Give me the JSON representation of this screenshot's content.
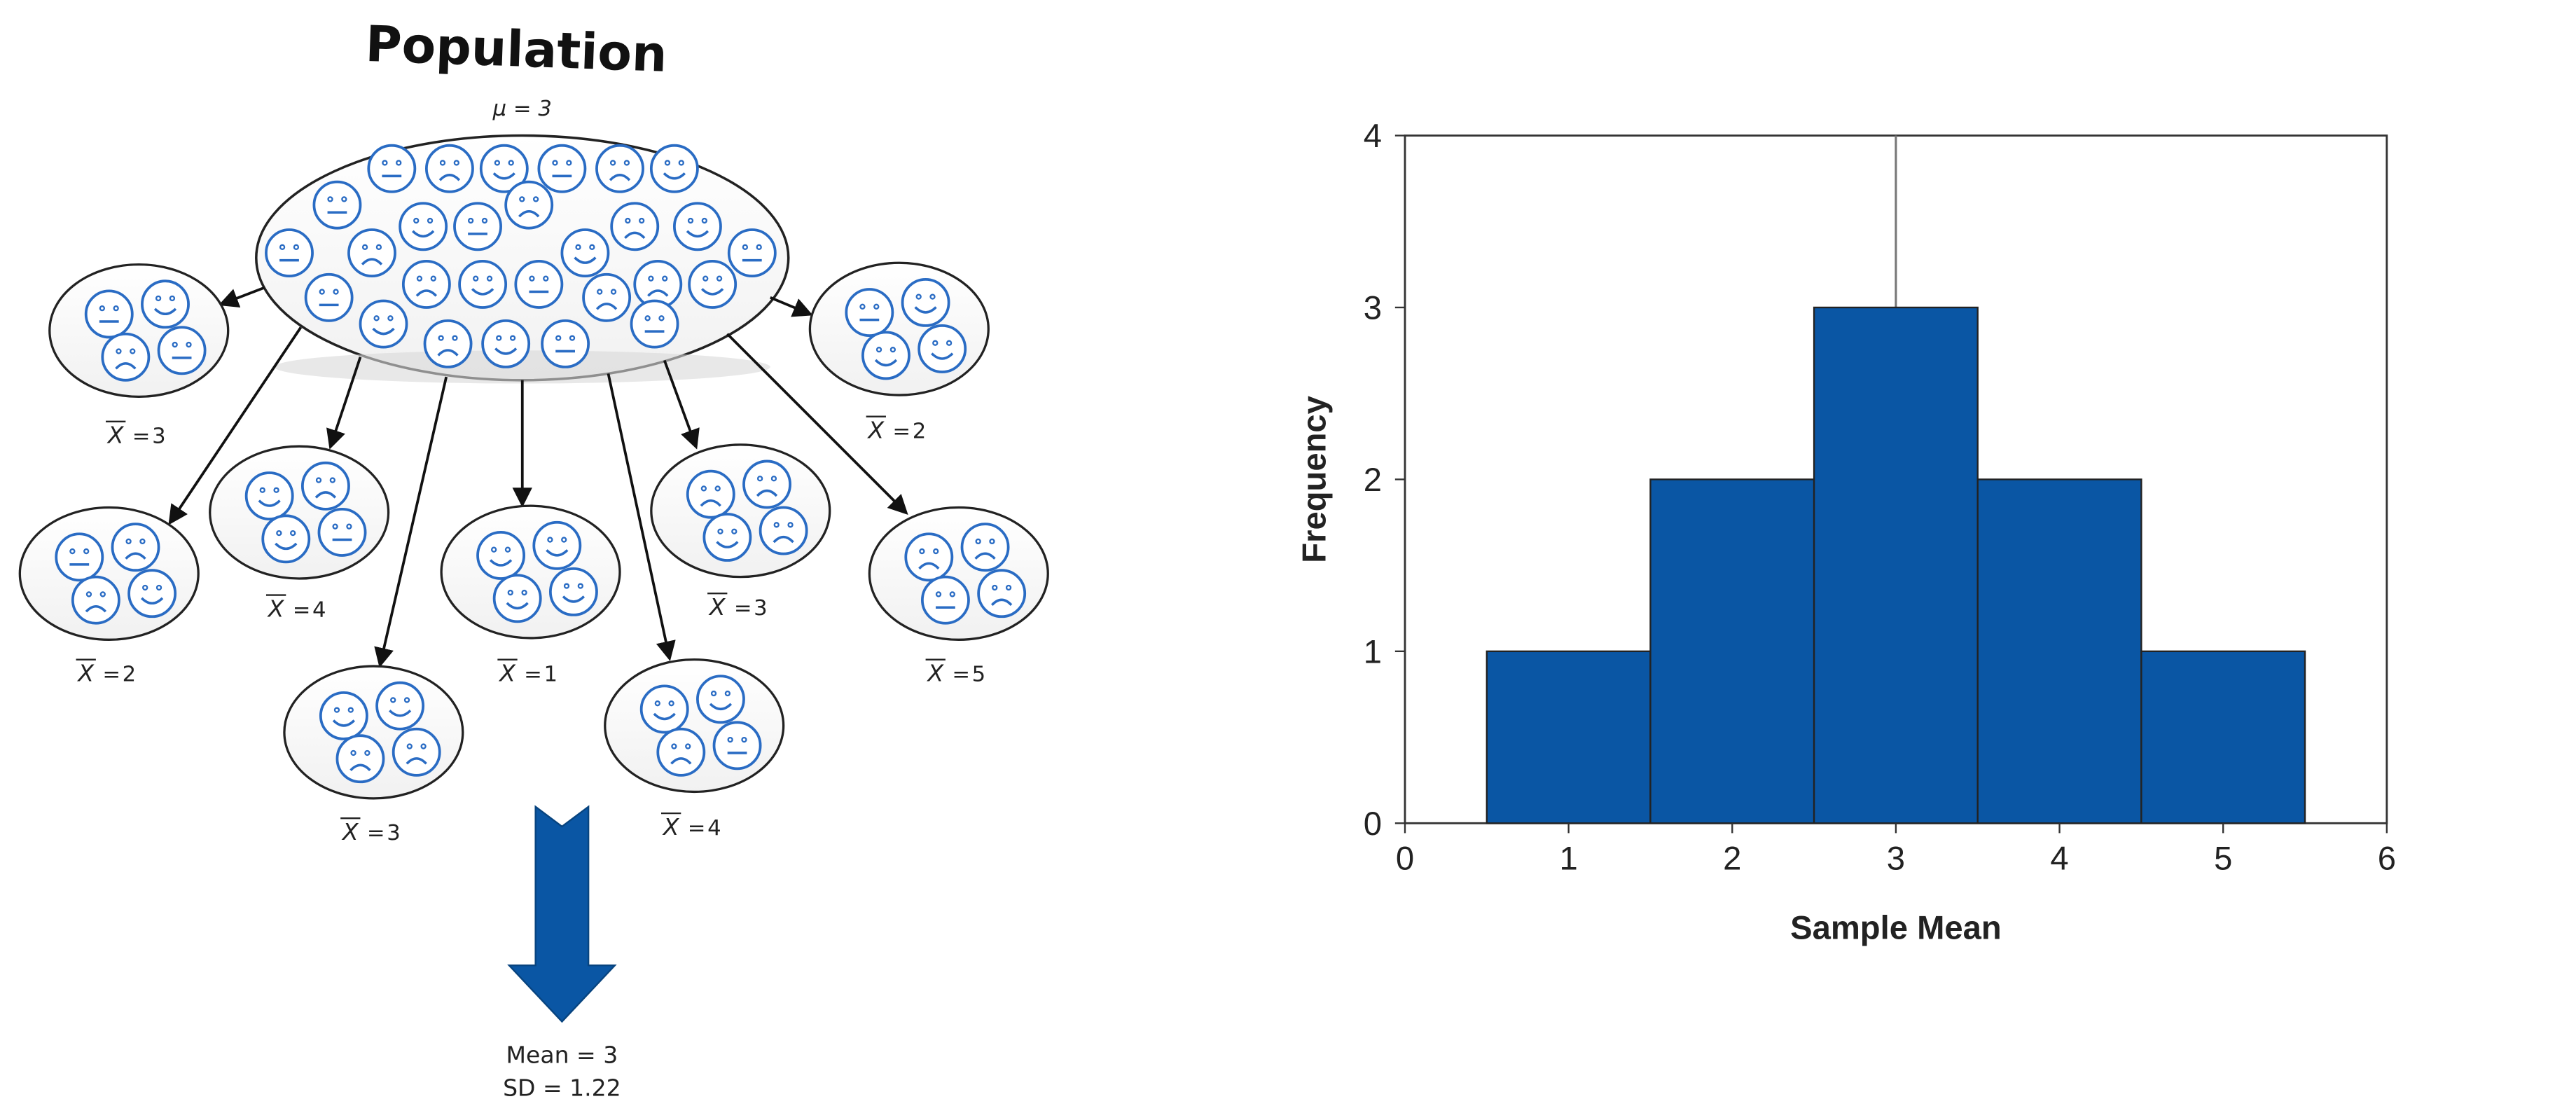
{
  "diagram": {
    "title": "Population",
    "population_param": "μ = 3",
    "samples": [
      {
        "id": "top-left",
        "mean": "3",
        "faces": [
          "neutral",
          "happy",
          "sad",
          "neutral"
        ]
      },
      {
        "id": "top-right",
        "mean": "2",
        "faces": [
          "neutral",
          "happy",
          "happy",
          "happy"
        ]
      },
      {
        "id": "mid-left",
        "mean": "2",
        "faces": [
          "neutral",
          "sad",
          "sad",
          "happy"
        ]
      },
      {
        "id": "mid-left-inner",
        "mean": "4",
        "faces": [
          "happy",
          "sad",
          "happy",
          "neutral"
        ]
      },
      {
        "id": "center",
        "mean": "1",
        "faces": [
          "happy",
          "happy",
          "happy",
          "happy"
        ]
      },
      {
        "id": "mid-right-inner",
        "mean": "3",
        "faces": [
          "sad",
          "sad",
          "happy",
          "sad"
        ]
      },
      {
        "id": "mid-right",
        "mean": "5",
        "faces": [
          "sad",
          "sad",
          "neutral",
          "sad"
        ]
      },
      {
        "id": "bottom-left",
        "mean": "3",
        "faces": [
          "happy",
          "happy",
          "sad",
          "sad"
        ]
      },
      {
        "id": "bottom-right",
        "mean": "4",
        "faces": [
          "happy",
          "happy",
          "sad",
          "neutral"
        ]
      }
    ],
    "summary": {
      "mean": "Mean = 3",
      "sd": "SD = 1.22"
    },
    "arrow_color": "#0a56a4",
    "face_color": "#2a6cc4"
  },
  "chart_data": {
    "type": "bar",
    "title": "",
    "xlabel": "Sample Mean",
    "ylabel": "Frequency",
    "categories": [
      1,
      2,
      3,
      4,
      5
    ],
    "values": [
      1,
      2,
      3,
      2,
      1
    ],
    "bin_width": 1,
    "xlim": [
      0,
      6
    ],
    "ylim": [
      0,
      4
    ],
    "xticks": [
      0,
      1,
      2,
      3,
      4,
      5,
      6
    ],
    "yticks": [
      0,
      1,
      2,
      3,
      4
    ],
    "mean_line": 3,
    "bar_color": "#0a56a4",
    "grid": false,
    "legend": "none"
  }
}
